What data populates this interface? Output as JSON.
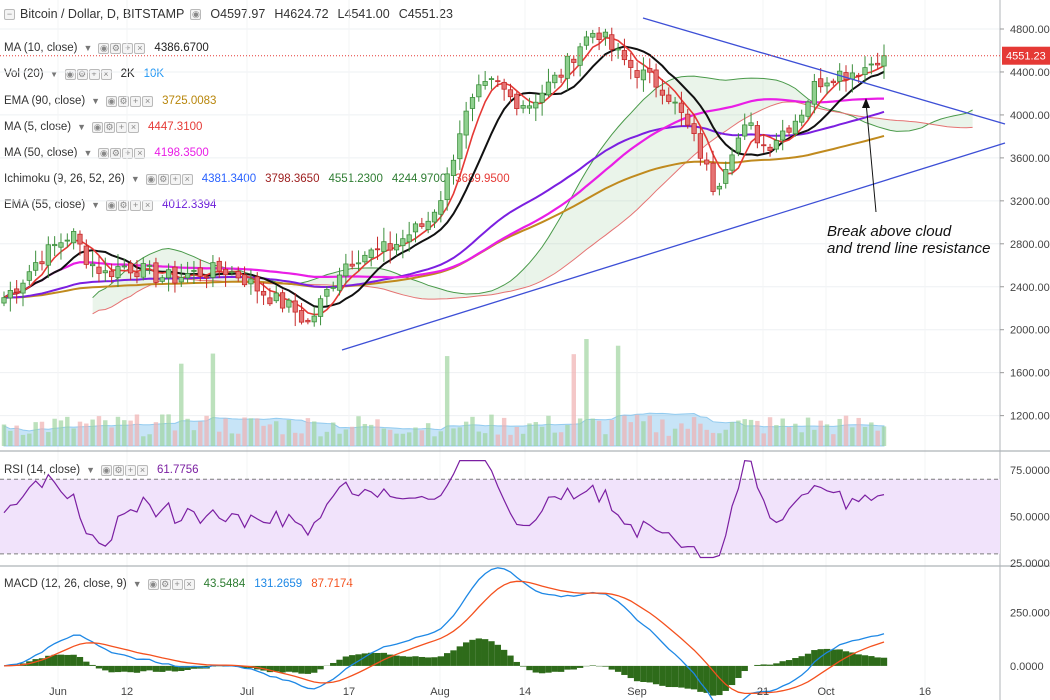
{
  "header": {
    "symbol": "Bitcoin / Dollar, D, BITSTAMP",
    "open": "O4597.97",
    "high": "H4624.72",
    "low": "L4541.00",
    "close": "C4551.23"
  },
  "legends": [
    {
      "id": "ma10",
      "label": "MA (10, close)",
      "values": [
        {
          "text": "4386.6700",
          "color": "#222222"
        }
      ]
    },
    {
      "id": "vol",
      "label": "Vol (20)",
      "values": [
        {
          "text": "2K",
          "color": "#222222"
        },
        {
          "text": "10K",
          "color": "#2196f3"
        }
      ]
    },
    {
      "id": "ema90",
      "label": "EMA (90, close)",
      "values": [
        {
          "text": "3725.0083",
          "color": "#b8860b"
        }
      ]
    },
    {
      "id": "ma5",
      "label": "MA (5, close)",
      "values": [
        {
          "text": "4447.3100",
          "color": "#e53935"
        }
      ]
    },
    {
      "id": "ma50",
      "label": "MA (50, close)",
      "values": [
        {
          "text": "4198.3500",
          "color": "#e91ee6"
        }
      ]
    },
    {
      "id": "ichimoku",
      "label": "Ichimoku (9, 26, 52, 26)",
      "values": [
        {
          "text": "4381.3400",
          "color": "#2962ff"
        },
        {
          "text": "3798.3650",
          "color": "#9c1c1c"
        },
        {
          "text": "4551.2300",
          "color": "#2e7d32"
        },
        {
          "text": "4244.9700",
          "color": "#2e7d32"
        },
        {
          "text": "3689.9500",
          "color": "#e53935"
        }
      ]
    },
    {
      "id": "ema55",
      "label": "EMA (55, close)",
      "values": [
        {
          "text": "4012.3394",
          "color": "#6a1bd8"
        }
      ]
    }
  ],
  "rsi_legend": {
    "label": "RSI (14, close)",
    "value": "61.7756",
    "color": "#7b1fa2"
  },
  "macd_legend": {
    "label": "MACD (12, 26, close, 9)",
    "values": [
      {
        "text": "43.5484",
        "color": "#2e7d32"
      },
      {
        "text": "131.2659",
        "color": "#1e88e5"
      },
      {
        "text": "87.7174",
        "color": "#f4511e"
      }
    ]
  },
  "annotation": {
    "line1": "Break above cloud",
    "line2": "and trend line resistance"
  },
  "price_label": "4551.23",
  "colors": {
    "up": "#3c9b3c",
    "down": "#e53935",
    "ma10": "#111111",
    "ma5": "#e53935",
    "ma50": "#e91ee6",
    "ema55": "#7b1fe0",
    "ema90": "#c08a1e",
    "trend": "#3d4fd6",
    "cloud_span_a": "#4a9a4a",
    "cloud_span_b": "#e57373",
    "rsi": "#7b1fa2",
    "macd": "#1e88e5",
    "signal": "#f4511e",
    "hist": "#2e6b1a"
  },
  "chart_data": [
    {
      "type": "candlestick",
      "title": "Bitcoin / Dollar, D, BITSTAMP",
      "y_axis_ticks": [
        4800,
        4400,
        4000,
        3600,
        3200,
        2800,
        2400,
        2000,
        1600,
        1200
      ],
      "ylim": [
        880,
        5070
      ],
      "x_ticks": [
        "Jun",
        "12",
        "Jul",
        "17",
        "Aug",
        "14",
        "Sep",
        "21",
        "Oct",
        "16"
      ],
      "last_close": 4551.23,
      "close_path": [
        2300,
        2450,
        2650,
        2780,
        2900,
        2640,
        2520,
        2600,
        2560,
        2500,
        2480,
        2520,
        2540,
        2560,
        2500,
        2380,
        2280,
        2200,
        2050,
        2330,
        2600,
        2700,
        2720,
        2780,
        2900,
        3000,
        3300,
        3900,
        4200,
        4300,
        4150,
        4100,
        4250,
        4400,
        4650,
        4800,
        4600,
        4450,
        4350,
        4250,
        4000,
        3700,
        3300,
        3700,
        3900,
        3700,
        3850,
        4000,
        4300,
        4380,
        4400,
        4450,
        4600
      ],
      "annotations": [
        "Break above cloud",
        "and trend line resistance"
      ]
    },
    {
      "type": "line",
      "name": "RSI (14, close)",
      "y_axis_ticks": [
        75,
        50,
        25
      ],
      "ylim": [
        24,
        83
      ],
      "band": [
        30,
        70
      ],
      "last_value": 61.7756
    },
    {
      "type": "line",
      "name": "MACD (12, 26, close, 9)",
      "y_axis_ticks": [
        250,
        0
      ],
      "ylim": [
        -160,
        450
      ],
      "macd": 131.2659,
      "signal": 87.7174,
      "histogram": 43.5484
    }
  ]
}
